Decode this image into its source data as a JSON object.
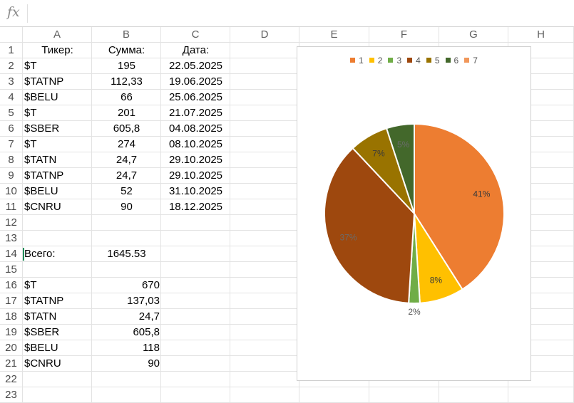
{
  "formula_bar": {
    "fx_label": "fx",
    "value": ""
  },
  "columns": [
    "A",
    "B",
    "C",
    "D",
    "E",
    "F",
    "G",
    "H"
  ],
  "rows": [
    "1",
    "2",
    "3",
    "4",
    "5",
    "6",
    "7",
    "8",
    "9",
    "10",
    "11",
    "12",
    "13",
    "14",
    "15",
    "16",
    "17",
    "18",
    "19",
    "20",
    "21",
    "22",
    "23"
  ],
  "header": {
    "ticker": "Тикер:",
    "sum": "Сумма:",
    "date": "Дата:"
  },
  "transactions": [
    {
      "ticker": "$T",
      "sum": "195",
      "date": "22.05.2025"
    },
    {
      "ticker": "$TATNP",
      "sum": "112,33",
      "date": "19.06.2025"
    },
    {
      "ticker": "$BELU",
      "sum": "66",
      "date": "25.06.2025"
    },
    {
      "ticker": "$T",
      "sum": "201",
      "date": "21.07.2025"
    },
    {
      "ticker": "$SBER",
      "sum": "605,8",
      "date": "04.08.2025"
    },
    {
      "ticker": "$T",
      "sum": "274",
      "date": "08.10.2025"
    },
    {
      "ticker": "$TATN",
      "sum": "24,7",
      "date": "29.10.2025"
    },
    {
      "ticker": "$TATNP",
      "sum": "24,7",
      "date": "29.10.2025"
    },
    {
      "ticker": "$BELU",
      "sum": "52",
      "date": "31.10.2025"
    },
    {
      "ticker": "$CNRU",
      "sum": "90",
      "date": "18.12.2025"
    }
  ],
  "total": {
    "label": "Всего:",
    "value": "1645.53"
  },
  "summary": [
    {
      "ticker": "$T",
      "sum": "670"
    },
    {
      "ticker": "$TATNP",
      "sum": "137,03"
    },
    {
      "ticker": "$TATN",
      "sum": "24,7"
    },
    {
      "ticker": "$SBER",
      "sum": "605,8"
    },
    {
      "ticker": "$BELU",
      "sum": "118"
    },
    {
      "ticker": "$CNRU",
      "sum": "90"
    }
  ],
  "chart_data": {
    "type": "pie",
    "title": "",
    "legend_position": "top",
    "categories": [
      "1",
      "2",
      "3",
      "4",
      "5",
      "6",
      "7"
    ],
    "values": [
      41,
      8,
      2,
      37,
      7,
      5,
      0
    ],
    "labels": [
      "41%",
      "8%",
      "2%",
      "37%",
      "7%",
      "5%",
      ""
    ],
    "colors": [
      "#ED7D31",
      "#FFC000",
      "#70AD47",
      "#9E480E",
      "#997300",
      "#43682B",
      "#F1975A"
    ]
  }
}
